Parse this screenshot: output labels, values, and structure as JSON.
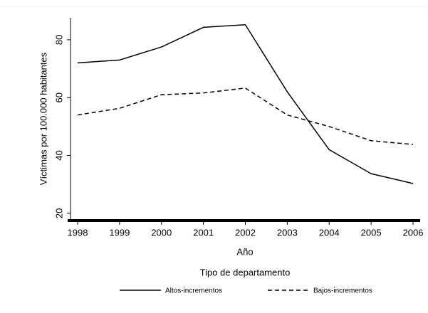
{
  "chart_data": {
    "type": "line",
    "x_label": "Año",
    "y_label": "Víctimas por 100.000 habitantes",
    "x": [
      1998,
      1999,
      2000,
      2001,
      2002,
      2003,
      2004,
      2005,
      2006
    ],
    "series": [
      {
        "name": "Altos-incrementos",
        "color": "#000000",
        "dash": false,
        "values": [
          72,
          73,
          77.5,
          84.3,
          85.2,
          62,
          42,
          33.7,
          30.3
        ]
      },
      {
        "name": "Bajos-incrementos",
        "color": "#000000",
        "dash": true,
        "values": [
          54,
          56.3,
          61,
          61.6,
          63.3,
          54,
          50,
          45.1,
          43.8
        ]
      }
    ],
    "xlim": [
      1997.83,
      2006.17
    ],
    "xticks": [
      1998,
      1999,
      2000,
      2001,
      2002,
      2003,
      2004,
      2005,
      2006
    ],
    "ylim": [
      17.5,
      87.6
    ],
    "yticks": [
      20,
      40,
      60,
      80
    ],
    "legend_title": "Tipo de departamento",
    "legend": "bottom",
    "grid": false
  }
}
